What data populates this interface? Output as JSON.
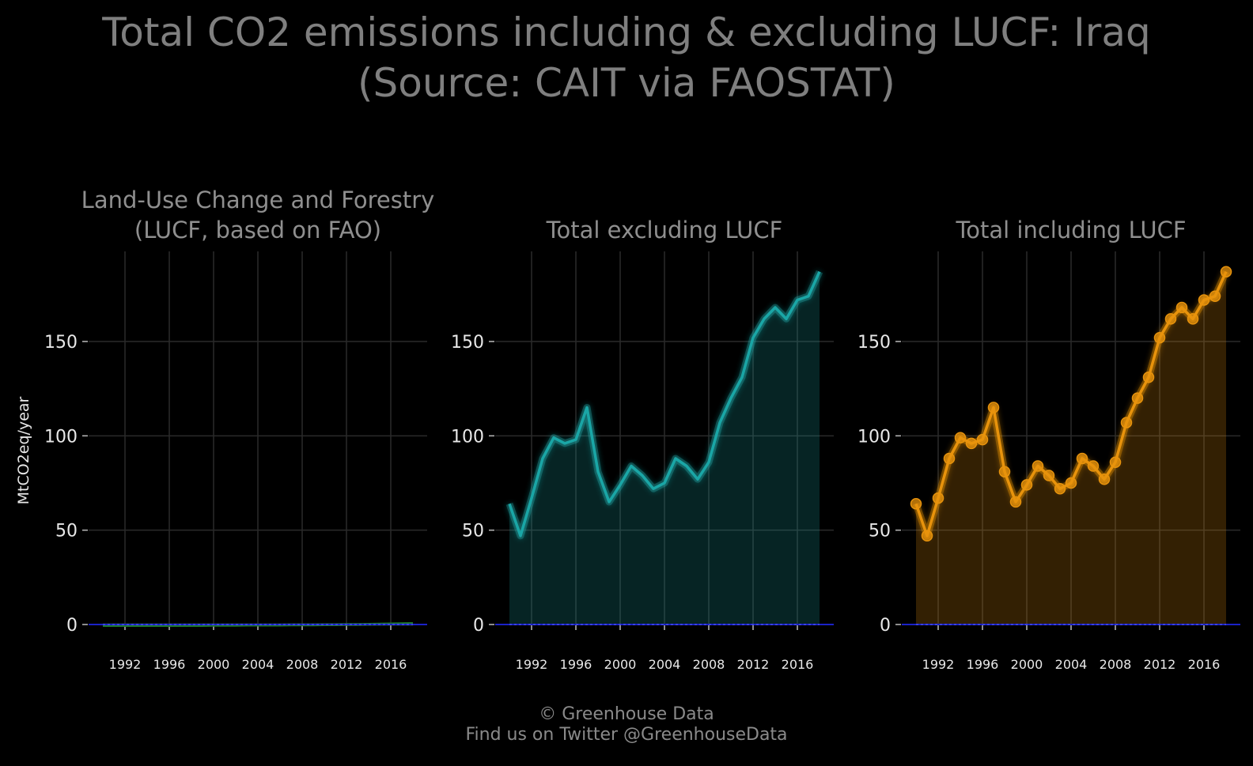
{
  "title_line1": "Total CO2 emissions including & excluding LUCF: Iraq",
  "title_line2": "(Source: CAIT via FAOSTAT)",
  "footer_line1": "© Greenhouse Data",
  "footer_line2": "Find us on Twitter @GreenhouseData",
  "chart_data": {
    "type": "area",
    "ylabel": "MtCO2eq/year",
    "ylim": [
      0,
      190
    ],
    "yticks": [
      0,
      50,
      100,
      150
    ],
    "xticks": [
      1992,
      1996,
      2000,
      2004,
      2008,
      2012,
      2016
    ],
    "x": [
      1990,
      1991,
      1992,
      1993,
      1994,
      1995,
      1996,
      1997,
      1998,
      1999,
      2000,
      2001,
      2002,
      2003,
      2004,
      2005,
      2006,
      2007,
      2008,
      2009,
      2010,
      2011,
      2012,
      2013,
      2014,
      2015,
      2016,
      2017,
      2018
    ],
    "panels": [
      {
        "title_lines": [
          "Land-Use Change and Forestry",
          "(LUCF, based on FAO)"
        ],
        "color": "#1f7a2e",
        "markers": false,
        "values": [
          -0.5,
          -0.5,
          -0.5,
          -0.5,
          -0.5,
          -0.5,
          -0.5,
          -0.5,
          -0.5,
          -0.5,
          -0.4,
          -0.4,
          -0.4,
          -0.3,
          -0.3,
          -0.3,
          -0.3,
          -0.2,
          -0.2,
          -0.2,
          -0.1,
          -0.1,
          0,
          0,
          0.1,
          0.2,
          0.3,
          0.4,
          0.5
        ]
      },
      {
        "title_lines": [
          "Total excluding LUCF"
        ],
        "color": "#1aa6a6",
        "markers": false,
        "values": [
          64,
          47,
          67,
          88,
          99,
          96,
          98,
          115,
          81,
          65,
          74,
          84,
          79,
          72,
          75,
          88,
          84,
          77,
          86,
          107,
          120,
          131,
          152,
          162,
          168,
          162,
          172,
          174,
          187
        ]
      },
      {
        "title_lines": [
          "Total including LUCF"
        ],
        "color": "#e8930c",
        "markers": true,
        "values": [
          64,
          47,
          67,
          88,
          99,
          96,
          98,
          115,
          81,
          65,
          74,
          84,
          79,
          72,
          75,
          88,
          84,
          77,
          86,
          107,
          120,
          131,
          152,
          162,
          168,
          162,
          172,
          174,
          187
        ]
      }
    ]
  }
}
